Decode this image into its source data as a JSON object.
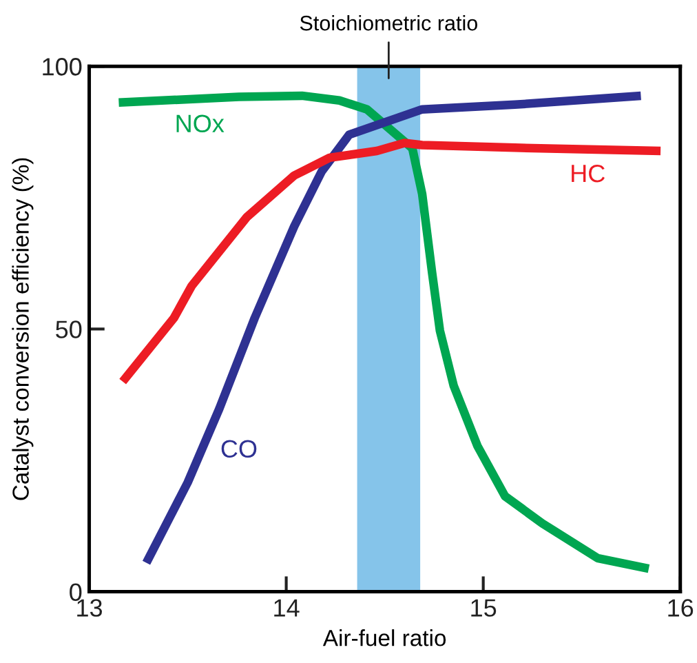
{
  "chart_data": {
    "type": "line",
    "xlabel": "Air-fuel ratio",
    "ylabel": "Catalyst conversion efficiency (%)",
    "xlim": [
      13,
      16
    ],
    "xticks": [
      13,
      14,
      15,
      16
    ],
    "ylim": [
      0,
      100
    ],
    "yticks": [
      0,
      50,
      100
    ],
    "grid": false,
    "legend": false,
    "marker": "none",
    "line_style": "solid",
    "bands": [
      {
        "axis": "x",
        "from": 14.36,
        "to": 14.68,
        "label": "Stoichiometric ratio",
        "color": "#78bee8"
      }
    ],
    "series": [
      {
        "name": "NOx",
        "color": "#00a651",
        "x": [
          13.15,
          13.76,
          14.08,
          14.27,
          14.41,
          14.64,
          14.69,
          14.74,
          14.78,
          14.85,
          14.97,
          15.11,
          15.3,
          15.58,
          15.84
        ],
        "values": [
          93.1,
          94.2,
          94.4,
          93.5,
          91.8,
          84.4,
          75.7,
          60.8,
          49.7,
          39.2,
          27.8,
          18.2,
          13.0,
          6.4,
          4.4
        ]
      },
      {
        "name": "CO",
        "color": "#2e3192",
        "x": [
          13.29,
          13.5,
          13.66,
          13.84,
          14.04,
          14.18,
          14.32,
          14.69,
          15.16,
          15.8
        ],
        "values": [
          5.5,
          20.8,
          34.8,
          52.1,
          69.5,
          80.0,
          87.0,
          91.8,
          92.7,
          94.4
        ]
      },
      {
        "name": "HC",
        "color": "#ed1c24",
        "x": [
          13.17,
          13.43,
          13.52,
          13.8,
          14.04,
          14.22,
          14.46,
          14.6,
          14.69,
          15.16,
          15.9
        ],
        "values": [
          40.0,
          52.1,
          58.2,
          71.3,
          79.2,
          82.6,
          83.9,
          85.4,
          85.0,
          84.5,
          83.9
        ]
      }
    ]
  }
}
